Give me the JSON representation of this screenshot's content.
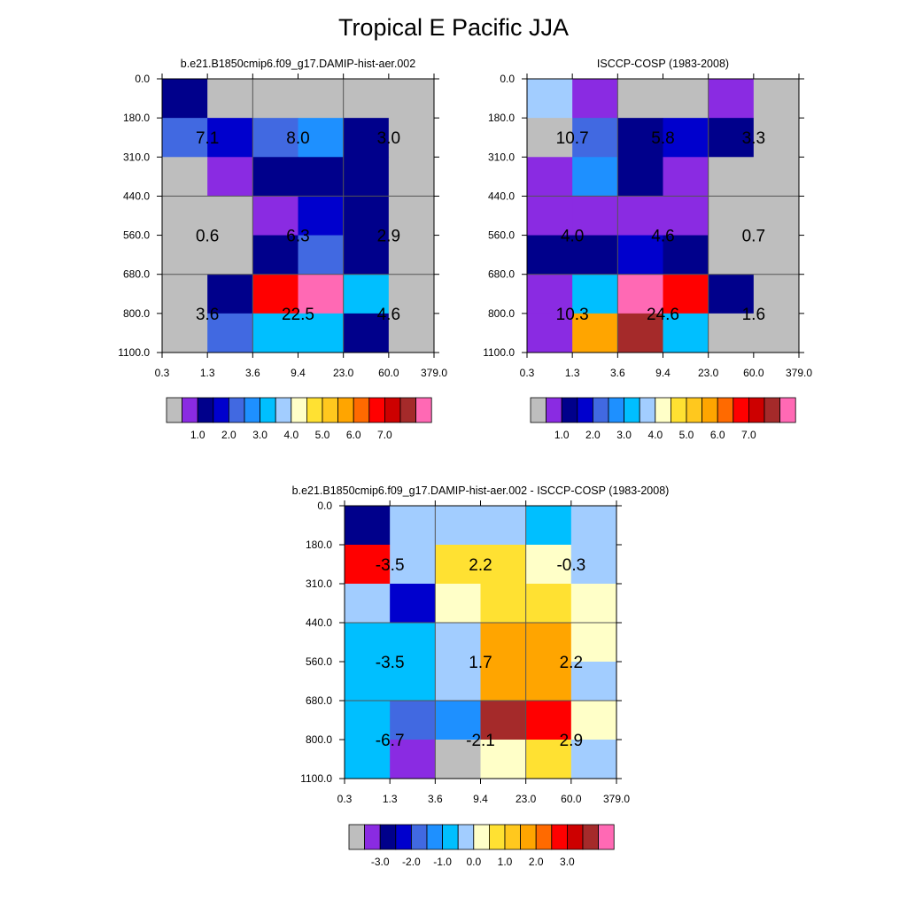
{
  "title": "Tropical E Pacific JJA",
  "axes": {
    "x_ticks": [
      "0.3",
      "1.3",
      "3.6",
      "9.4",
      "23.0",
      "60.0",
      "379.0"
    ],
    "y_ticks": [
      "0.0",
      "180.0",
      "310.0",
      "440.0",
      "560.0",
      "680.0",
      "800.0",
      "1100.0"
    ]
  },
  "colorbars": {
    "abs": {
      "colors": [
        "#bebebe",
        "#8a2be2",
        "#00008b",
        "#0000cd",
        "#4169e1",
        "#1e90ff",
        "#00bfff",
        "#a2cdff",
        "#ffffc8",
        "#ffe132",
        "#ffc81e",
        "#ffa500",
        "#ff6a00",
        "#ff0000",
        "#cd0000",
        "#a52a2a",
        "#ff69b4"
      ],
      "labels": [
        "1.0",
        "2.0",
        "3.0",
        "4.0",
        "5.0",
        "6.0",
        "7.0"
      ]
    },
    "diff": {
      "colors": [
        "#bebebe",
        "#8a2be2",
        "#00008b",
        "#0000cd",
        "#4169e1",
        "#1e90ff",
        "#00bfff",
        "#a2cdff",
        "#ffffc8",
        "#ffe132",
        "#ffc81e",
        "#ffa500",
        "#ff6a00",
        "#ff0000",
        "#cd0000",
        "#a52a2a",
        "#ff69b4"
      ],
      "labels": [
        "-3.0",
        "-2.0",
        "-1.0",
        "0.0",
        "1.0",
        "2.0",
        "3.0"
      ]
    }
  },
  "chart_data": [
    {
      "type": "heatmap",
      "title": "b.e21.B1850cmip6.f09_g17.DAMIP-hist-aer.002",
      "colorbar": "abs",
      "cells": [
        [
          "#00008b",
          "#bebebe",
          "#bebebe",
          "#bebebe",
          "#bebebe",
          "#bebebe"
        ],
        [
          "#4169e1",
          "#0000cd",
          "#4169e1",
          "#1e90ff",
          "#00008b",
          "#bebebe"
        ],
        [
          "#bebebe",
          "#8a2be2",
          "#00008b",
          "#00008b",
          "#00008b",
          "#bebebe"
        ],
        [
          "#bebebe",
          "#bebebe",
          "#8a2be2",
          "#0000cd",
          "#00008b",
          "#bebebe"
        ],
        [
          "#bebebe",
          "#bebebe",
          "#00008b",
          "#4169e1",
          "#00008b",
          "#bebebe"
        ],
        [
          "#bebebe",
          "#00008b",
          "#ff0000",
          "#ff69b4",
          "#00bfff",
          "#bebebe"
        ],
        [
          "#bebebe",
          "#4169e1",
          "#00bfff",
          "#00bfff",
          "#00008b",
          "#bebebe"
        ]
      ],
      "annotations": [
        {
          "text": "7.1",
          "x": 1,
          "y": 1.5
        },
        {
          "text": "8.0",
          "x": 3,
          "y": 1.5
        },
        {
          "text": "3.0",
          "x": 5,
          "y": 1.5
        },
        {
          "text": "0.6",
          "x": 1,
          "y": 4
        },
        {
          "text": "6.3",
          "x": 3,
          "y": 4
        },
        {
          "text": "2.9",
          "x": 5,
          "y": 4
        },
        {
          "text": "3.6",
          "x": 1,
          "y": 6
        },
        {
          "text": "22.5",
          "x": 3,
          "y": 6
        },
        {
          "text": "4.6",
          "x": 5,
          "y": 6
        }
      ]
    },
    {
      "type": "heatmap",
      "title": "ISCCP-COSP (1983-2008)",
      "colorbar": "abs",
      "cells": [
        [
          "#a2cdff",
          "#8a2be2",
          "#bebebe",
          "#bebebe",
          "#8a2be2",
          "#bebebe"
        ],
        [
          "#bebebe",
          "#4169e1",
          "#00008b",
          "#0000cd",
          "#00008b",
          "#bebebe"
        ],
        [
          "#8a2be2",
          "#1e90ff",
          "#00008b",
          "#8a2be2",
          "#bebebe",
          "#bebebe"
        ],
        [
          "#8a2be2",
          "#8a2be2",
          "#8a2be2",
          "#8a2be2",
          "#bebebe",
          "#bebebe"
        ],
        [
          "#00008b",
          "#00008b",
          "#0000cd",
          "#00008b",
          "#bebebe",
          "#bebebe"
        ],
        [
          "#8a2be2",
          "#00bfff",
          "#ff69b4",
          "#ff0000",
          "#00008b",
          "#bebebe"
        ],
        [
          "#8a2be2",
          "#ffa500",
          "#a52a2a",
          "#00bfff",
          "#bebebe",
          "#bebebe"
        ]
      ],
      "annotations": [
        {
          "text": "10.7",
          "x": 1,
          "y": 1.5
        },
        {
          "text": "5.8",
          "x": 3,
          "y": 1.5
        },
        {
          "text": "3.3",
          "x": 5,
          "y": 1.5
        },
        {
          "text": "4.0",
          "x": 1,
          "y": 4
        },
        {
          "text": "4.6",
          "x": 3,
          "y": 4
        },
        {
          "text": "0.7",
          "x": 5,
          "y": 4
        },
        {
          "text": "10.3",
          "x": 1,
          "y": 6
        },
        {
          "text": "24.6",
          "x": 3,
          "y": 6
        },
        {
          "text": "1.6",
          "x": 5,
          "y": 6
        }
      ]
    },
    {
      "type": "heatmap",
      "title": "b.e21.B1850cmip6.f09_g17.DAMIP-hist-aer.002 - ISCCP-COSP (1983-2008)",
      "colorbar": "diff",
      "cells": [
        [
          "#00008b",
          "#a2cdff",
          "#a2cdff",
          "#a2cdff",
          "#00bfff",
          "#a2cdff"
        ],
        [
          "#ff0000",
          "#a2cdff",
          "#ffe132",
          "#ffe132",
          "#ffffc8",
          "#a2cdff"
        ],
        [
          "#a2cdff",
          "#0000cd",
          "#ffffc8",
          "#ffe132",
          "#ffe132",
          "#ffffc8"
        ],
        [
          "#00bfff",
          "#00bfff",
          "#a2cdff",
          "#ffa500",
          "#ffa500",
          "#ffffc8"
        ],
        [
          "#00bfff",
          "#00bfff",
          "#a2cdff",
          "#ffa500",
          "#ffa500",
          "#a2cdff"
        ],
        [
          "#00bfff",
          "#4169e1",
          "#1e90ff",
          "#a52a2a",
          "#ff0000",
          "#ffffc8"
        ],
        [
          "#00bfff",
          "#8a2be2",
          "#bebebe",
          "#ffffc8",
          "#ffe132",
          "#a2cdff"
        ]
      ],
      "annotations": [
        {
          "text": "-3.5",
          "x": 1,
          "y": 1.5
        },
        {
          "text": "2.2",
          "x": 3,
          "y": 1.5
        },
        {
          "text": "-0.3",
          "x": 5,
          "y": 1.5
        },
        {
          "text": "-3.5",
          "x": 1,
          "y": 4
        },
        {
          "text": "1.7",
          "x": 3,
          "y": 4
        },
        {
          "text": "2.2",
          "x": 5,
          "y": 4
        },
        {
          "text": "-6.7",
          "x": 1,
          "y": 6
        },
        {
          "text": "-2.1",
          "x": 3,
          "y": 6
        },
        {
          "text": "2.9",
          "x": 5,
          "y": 6
        }
      ]
    }
  ]
}
